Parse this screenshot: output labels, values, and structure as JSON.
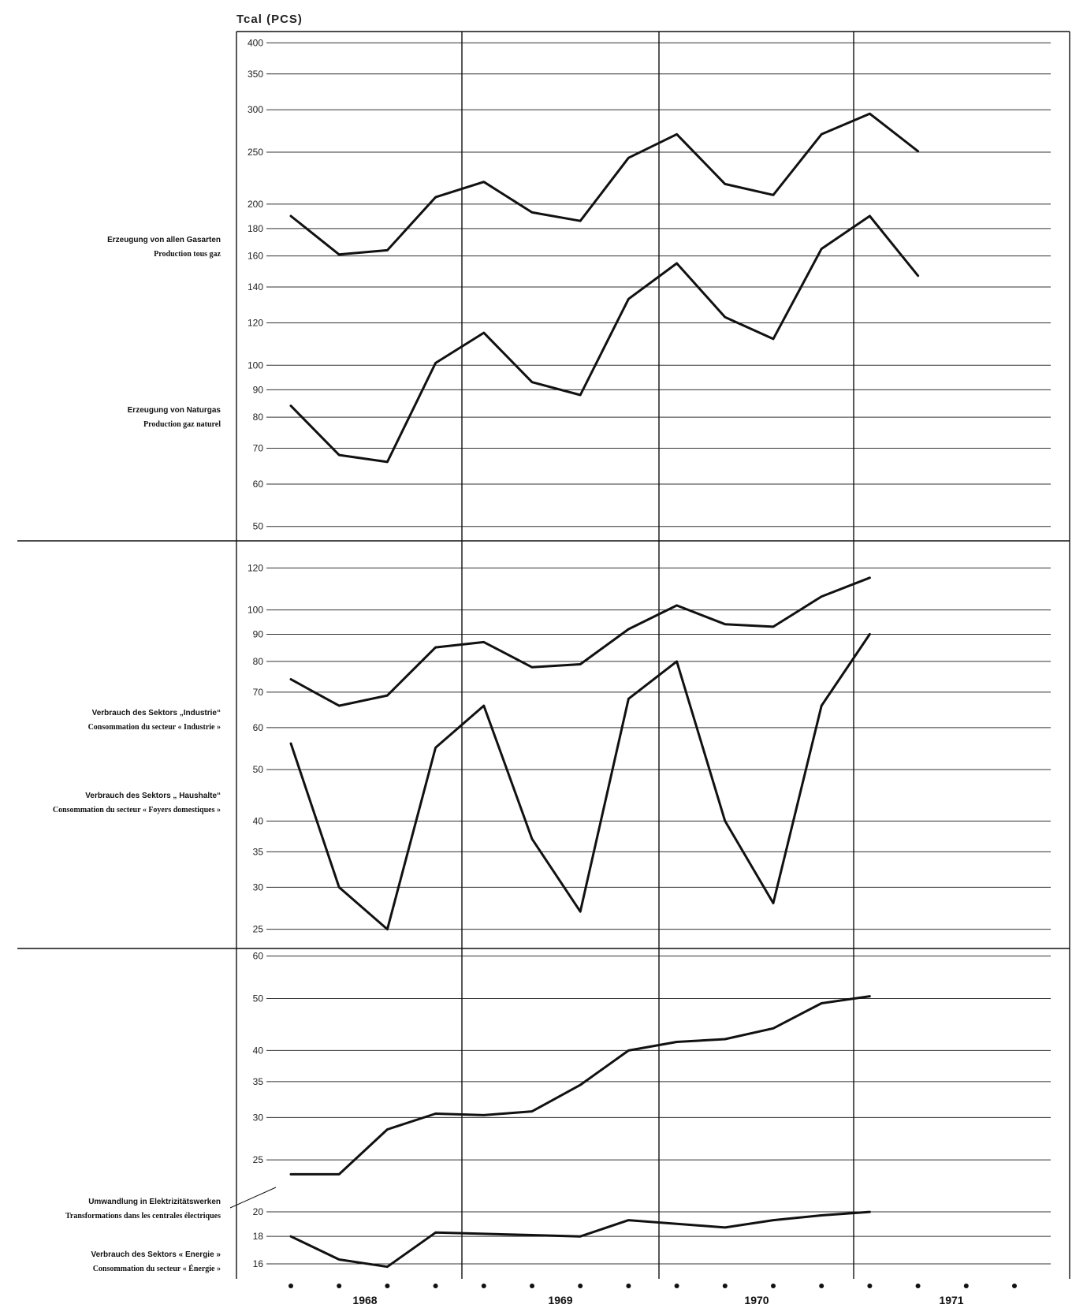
{
  "unit_label": "Tcal  (PCS)",
  "years": [
    "1968",
    "1969",
    "1970",
    "1971"
  ],
  "chart_data": [
    {
      "type": "line",
      "panel": "top",
      "yscale": "log",
      "ylim": [
        47,
        420
      ],
      "yticks": [
        400,
        350,
        300,
        250,
        200,
        180,
        160,
        140,
        120,
        100,
        90,
        80,
        70,
        60,
        50
      ],
      "x_quarters": 14,
      "series": [
        {
          "label_de": "Erzeugung von allen Gasarten",
          "label_fr": "Production tous gaz",
          "values": [
            190,
            161,
            164,
            206,
            220,
            193,
            186,
            244,
            270,
            218,
            208,
            270,
            295,
            251
          ]
        },
        {
          "label_de": "Erzeugung von Naturgas",
          "label_fr": "Production gaz naturel",
          "values": [
            84,
            68,
            66,
            101,
            115,
            93,
            88,
            133,
            155,
            123,
            112,
            165,
            190,
            147
          ]
        }
      ]
    },
    {
      "type": "line",
      "panel": "middle",
      "yscale": "log",
      "ylim": [
        23,
        135
      ],
      "yticks": [
        120,
        100,
        90,
        80,
        70,
        60,
        50,
        40,
        35,
        30,
        25
      ],
      "x_quarters": 13,
      "series": [
        {
          "label_de": "Verbrauch des Sektors „Industrie“",
          "label_fr": "Consommation du secteur « Industrie »",
          "values": [
            74,
            66,
            69,
            85,
            87,
            78,
            79,
            92,
            102,
            94,
            93,
            106,
            115
          ]
        },
        {
          "label_de": "Verbrauch des Sektors „ Haushalte“",
          "label_fr": "Consommation du secteur « Foyers domestiques »",
          "values": [
            56,
            30,
            25,
            55,
            66,
            37,
            27,
            68,
            80,
            40,
            28,
            66,
            90
          ]
        }
      ]
    },
    {
      "type": "line",
      "panel": "bottom",
      "yscale": "log",
      "ylim": [
        15,
        62
      ],
      "yticks": [
        60,
        50,
        40,
        35,
        30,
        25,
        20,
        18,
        16
      ],
      "x_quarters": 13,
      "series": [
        {
          "label_de": "Umwandlung in Elektrizitätswerken",
          "label_fr": "Transformations dans les centrales électriques",
          "values": [
            23.5,
            23.5,
            28.5,
            30.5,
            30.3,
            30.8,
            34.5,
            40,
            41.5,
            42,
            44,
            49,
            50.5
          ]
        },
        {
          "label_de": "Verbrauch des Sektors « Energie »",
          "label_fr": "Consommation du secteur « Énergie »",
          "values": [
            18,
            16.3,
            15.8,
            18.3,
            18.2,
            18.1,
            18,
            19.3,
            19,
            18.7,
            19.3,
            19.7,
            20
          ]
        }
      ]
    }
  ]
}
